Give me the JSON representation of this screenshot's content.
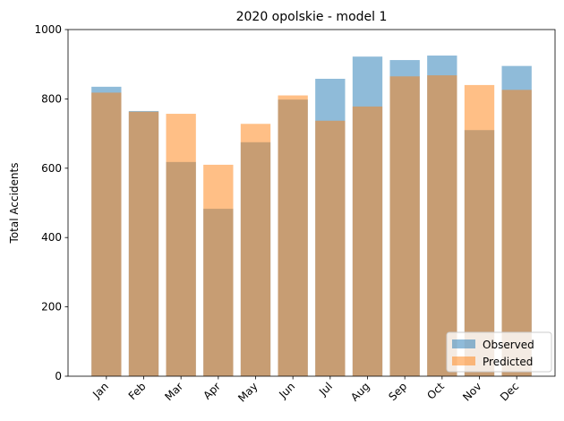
{
  "chart_data": {
    "type": "bar",
    "title": "2020 opolskie - model 1",
    "xlabel": "",
    "ylabel": "Total Accidents",
    "categories": [
      "Jan",
      "Feb",
      "Mar",
      "Apr",
      "May",
      "Jun",
      "Jul",
      "Aug",
      "Sep",
      "Oct",
      "Nov",
      "Dec"
    ],
    "series": [
      {
        "name": "Observed",
        "values": [
          835,
          765,
          618,
          483,
          675,
          798,
          858,
          922,
          912,
          925,
          710,
          895
        ],
        "color": "#1f77b4"
      },
      {
        "name": "Predicted",
        "values": [
          818,
          763,
          757,
          610,
          728,
          810,
          737,
          778,
          865,
          868,
          840,
          826
        ],
        "color": "#ff7f0e"
      }
    ],
    "ylim": [
      0,
      1000
    ],
    "yticks": [
      0,
      200,
      400,
      600,
      800,
      1000
    ],
    "grid": false,
    "legend_position": "lower-right",
    "bar_alpha": 0.5
  }
}
